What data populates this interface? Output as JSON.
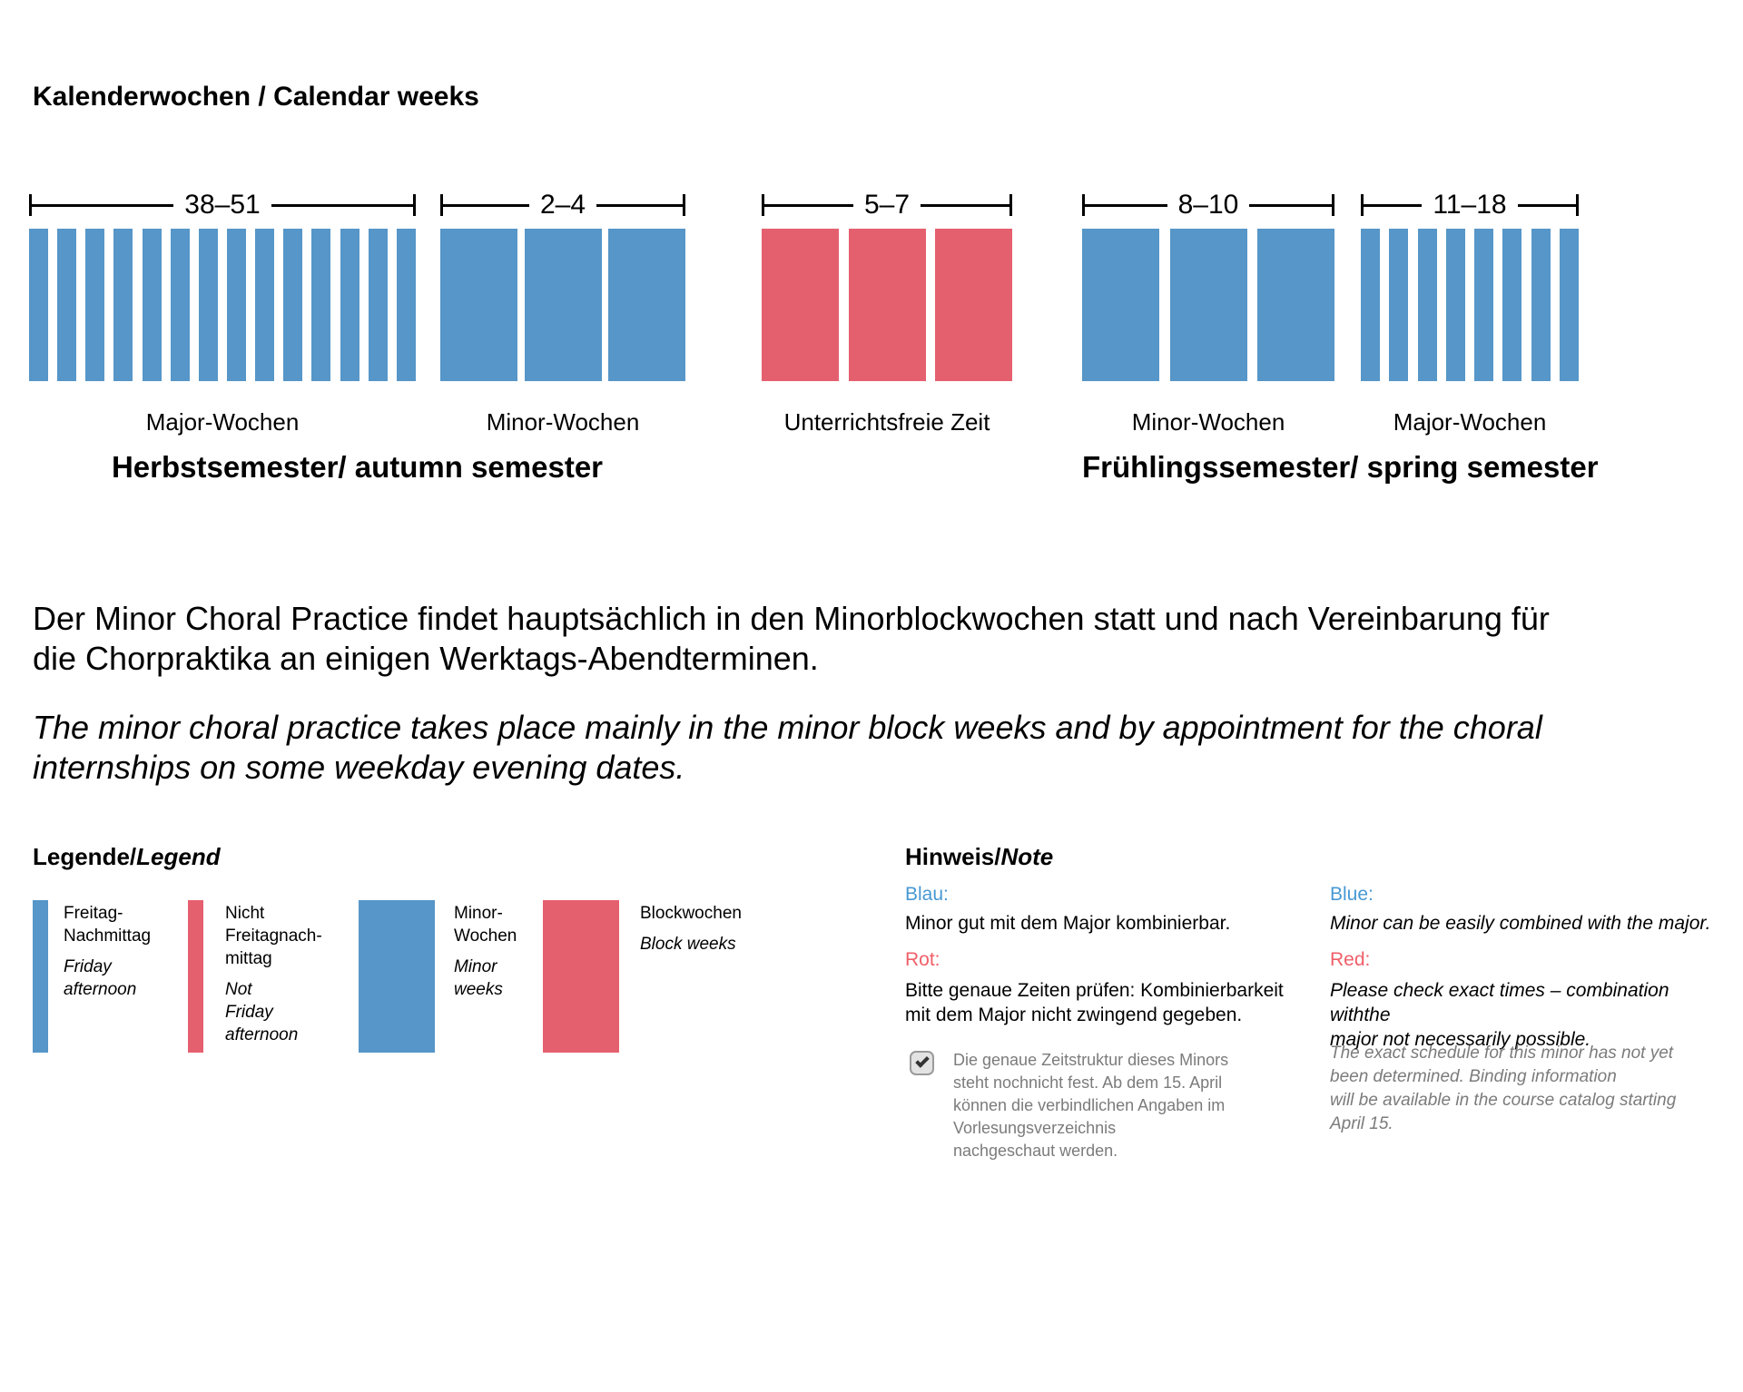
{
  "title": "Kalenderwochen / Calendar weeks",
  "colors": {
    "blue": "#5696c8",
    "red": "#e5606f",
    "blue_label": "#4798d3",
    "red_label": "#ef5e68",
    "gray_text": "#7b7b7b"
  },
  "diagram": {
    "groups": [
      {
        "range": "38–51",
        "weeks": 14,
        "style": "thin",
        "color": "blue",
        "label": "Major-Wochen"
      },
      {
        "range": "2–4",
        "weeks": 3,
        "style": "wide",
        "color": "blue",
        "label": "Minor-Wochen"
      },
      {
        "range": "5–7",
        "weeks": 3,
        "style": "wide",
        "color": "red",
        "label": "Unterrichtsfreie Zeit"
      },
      {
        "range": "8–10",
        "weeks": 3,
        "style": "wide",
        "color": "blue",
        "label": "Minor-Wochen"
      },
      {
        "range": "11–18",
        "weeks": 8,
        "style": "thin",
        "color": "blue",
        "label": "Major-Wochen"
      }
    ],
    "semesters": [
      "Herbstsemester/ autumn semester",
      "Frühlingssemester/ spring semester"
    ]
  },
  "paragraphs": {
    "german": "Der Minor Choral Practice findet hauptsächlich in den Minorblockwochen statt und nach Vereinbarung für\ndie Chorpraktika an einigen Werktags-Abendterminen.",
    "english": "The minor choral practice takes place mainly in the minor block weeks and by appointment for the choral\ninternships on some weekday evening dates."
  },
  "legend": {
    "heading_de": "Legende/",
    "heading_en": "Legend",
    "items": [
      {
        "swatch": "thin",
        "color": "blue",
        "de": "Freitag-\nNachmittag",
        "en": "Friday\nafternoon"
      },
      {
        "swatch": "thin",
        "color": "red",
        "de": "Nicht\nFreitagnach-\nmittag",
        "en": "Not\nFriday\nafternoon"
      },
      {
        "swatch": "wide",
        "color": "blue",
        "de": "Minor-\nWochen",
        "en": "Minor\nweeks"
      },
      {
        "swatch": "wide",
        "color": "red",
        "de": "Blockwochen",
        "en": "Block weeks"
      }
    ]
  },
  "note": {
    "heading_de": "Hinweis/",
    "heading_en": "Note",
    "german": {
      "blue_label": "Blau:",
      "blue_text": "Minor gut mit dem Major kombinierbar.",
      "red_label": "Rot:",
      "red_text": "Bitte genaue Zeiten prüfen: Kombinierbarkeit\nmit dem Major nicht zwingend gegeben.",
      "checkbox_checked": true,
      "checkbox_text": "Die genaue Zeitstruktur dieses Minors\nsteht nochnicht fest. Ab dem 15. April\nkönnen die verbindlichen Angaben im\nVorlesungsverzeichnis\nnachgeschaut werden."
    },
    "english": {
      "blue_label": "Blue:",
      "blue_text": "Minor can be easily combined with the major.",
      "red_label": "Red:",
      "red_text": "Please check exact times – combination withthe\nmajor not necessarily possible.",
      "note_text": "The exact schedule for this minor has not yet\nbeen determined. Binding information\nwill be available in the course catalog starting\nApril 15."
    }
  }
}
